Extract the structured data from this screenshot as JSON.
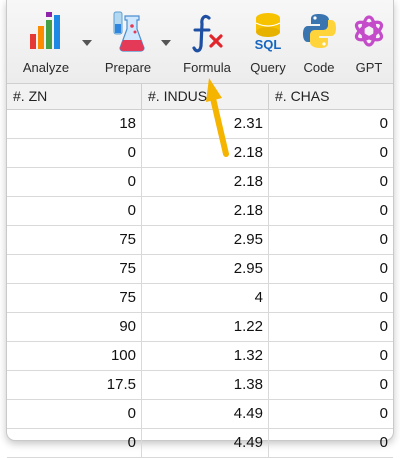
{
  "toolbar": {
    "analyze": "Analyze",
    "prepare": "Prepare",
    "formula": "Formula",
    "query": "Query",
    "code": "Code",
    "gpt": "GPT"
  },
  "icons": {
    "sql_text": "SQL"
  },
  "colors": {
    "arrow": "#F5B400",
    "formula_blue": "#1E4FA3",
    "formula_red": "#E0262C"
  },
  "table": {
    "columns": [
      "#. ZN",
      "#. INDUS",
      "#. CHAS"
    ],
    "rows": [
      [
        "18",
        "2.31",
        "0"
      ],
      [
        "0",
        "2.18",
        "0"
      ],
      [
        "0",
        "2.18",
        "0"
      ],
      [
        "0",
        "2.18",
        "0"
      ],
      [
        "75",
        "2.95",
        "0"
      ],
      [
        "75",
        "2.95",
        "0"
      ],
      [
        "75",
        "4",
        "0"
      ],
      [
        "90",
        "1.22",
        "0"
      ],
      [
        "100",
        "1.32",
        "0"
      ],
      [
        "17.5",
        "1.38",
        "0"
      ],
      [
        "0",
        "4.49",
        "0"
      ],
      [
        "0",
        "4.49",
        "0"
      ]
    ]
  }
}
